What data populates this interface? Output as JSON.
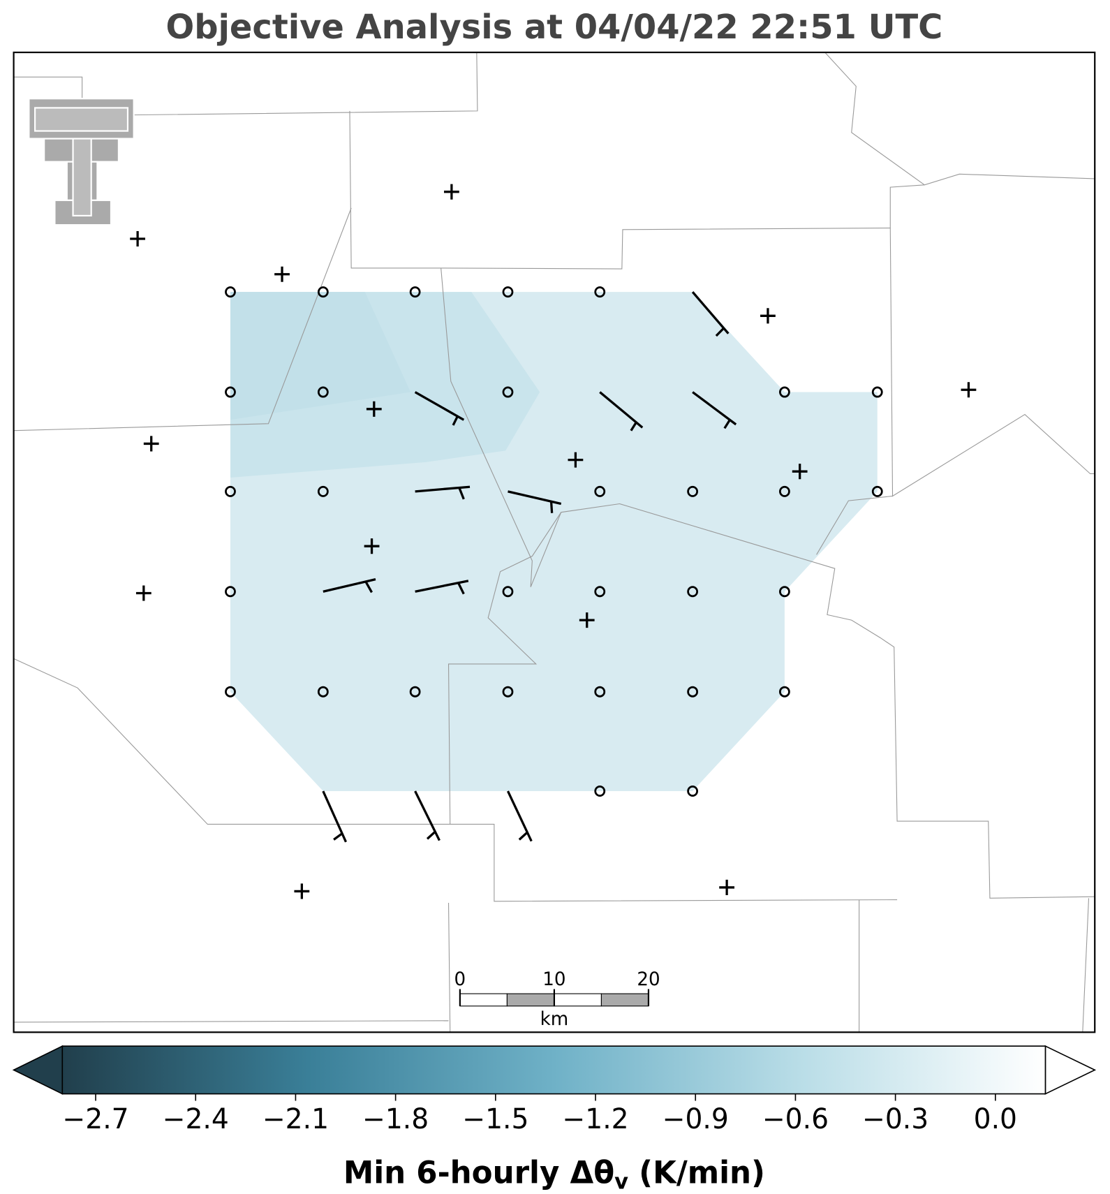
{
  "title": "Objective Analysis at 04/04/22 22:51 UTC",
  "scale_bar": {
    "xlim": [
      0,
      20
    ],
    "ticks": [
      0,
      10,
      20
    ],
    "unit": "km"
  },
  "colorbar": {
    "clim": [
      -2.8,
      0.15
    ],
    "colormap": [
      "#213f4c",
      "#3a7f98",
      "#6fb1c7",
      "#b9dde7",
      "#ffffff"
    ],
    "ticks": [
      {
        "value": -2.7,
        "label": "−2.7"
      },
      {
        "value": -2.4,
        "label": "−2.4"
      },
      {
        "value": -2.1,
        "label": "−2.1"
      },
      {
        "value": -1.8,
        "label": "−1.8"
      },
      {
        "value": -1.5,
        "label": "−1.5"
      },
      {
        "value": -1.2,
        "label": "−1.2"
      },
      {
        "value": -0.9,
        "label": "−0.9"
      },
      {
        "value": -0.6,
        "label": "−0.6"
      },
      {
        "value": -0.3,
        "label": "−0.3"
      },
      {
        "value": 0.0,
        "label": "0.0"
      }
    ],
    "label": {
      "text": "Min 6-hourly Δθ",
      "subscript": "v",
      "suffix": " (K/min)"
    }
  }
}
